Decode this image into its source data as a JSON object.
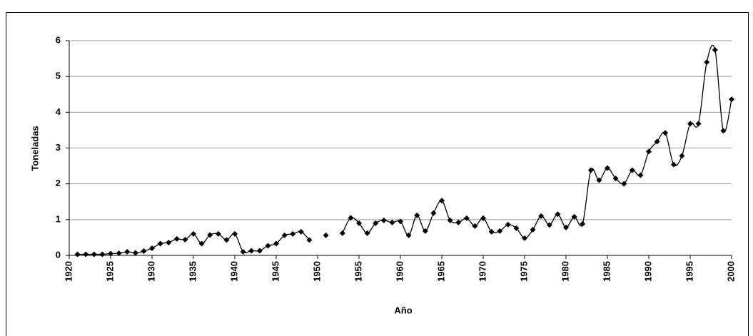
{
  "chart_data": {
    "type": "line",
    "xlabel": "Año",
    "ylabel": "Toneladas",
    "x": [
      1921,
      1922,
      1923,
      1924,
      1925,
      1926,
      1927,
      1928,
      1929,
      1930,
      1931,
      1932,
      1933,
      1934,
      1935,
      1936,
      1937,
      1938,
      1939,
      1940,
      1941,
      1942,
      1943,
      1944,
      1945,
      1946,
      1947,
      1948,
      1949,
      1950,
      1951,
      1952,
      1953,
      1954,
      1955,
      1956,
      1957,
      1958,
      1959,
      1960,
      1961,
      1962,
      1963,
      1964,
      1965,
      1966,
      1967,
      1968,
      1969,
      1970,
      1971,
      1972,
      1973,
      1974,
      1975,
      1976,
      1977,
      1978,
      1979,
      1980,
      1981,
      1982,
      1983,
      1984,
      1985,
      1986,
      1987,
      1988,
      1989,
      1990,
      1991,
      1992,
      1993,
      1994,
      1995,
      1996,
      1997,
      1998,
      1999,
      2000
    ],
    "values": [
      0.03,
      0.03,
      0.03,
      0.03,
      0.05,
      0.06,
      0.1,
      0.07,
      0.12,
      0.2,
      0.33,
      0.36,
      0.46,
      0.44,
      0.6,
      0.33,
      0.57,
      0.6,
      0.43,
      0.6,
      0.1,
      0.13,
      0.13,
      0.27,
      0.33,
      0.56,
      0.6,
      0.66,
      0.43,
      null,
      0.56,
      null,
      0.62,
      1.05,
      0.9,
      0.62,
      0.9,
      0.98,
      0.92,
      0.95,
      0.56,
      1.12,
      0.68,
      1.18,
      1.53,
      0.98,
      0.92,
      1.04,
      0.82,
      1.04,
      0.66,
      0.68,
      0.86,
      0.76,
      0.48,
      0.72,
      1.1,
      0.85,
      1.15,
      0.78,
      1.08,
      0.88,
      2.38,
      2.1,
      2.44,
      2.15,
      2.0,
      2.38,
      2.24,
      2.9,
      3.18,
      3.42,
      2.54,
      2.78,
      3.68,
      3.68,
      5.4,
      5.74,
      3.48,
      4.36
    ],
    "color": "#000000",
    "xlim": [
      1920,
      2000
    ],
    "xticks": [
      1920,
      1925,
      1930,
      1935,
      1940,
      1945,
      1950,
      1955,
      1960,
      1965,
      1970,
      1975,
      1980,
      1985,
      1990,
      1995,
      2000
    ],
    "ylim": [
      0,
      6
    ],
    "yticks": [
      0,
      1,
      2,
      3,
      4,
      5,
      6
    ],
    "grid": true
  }
}
